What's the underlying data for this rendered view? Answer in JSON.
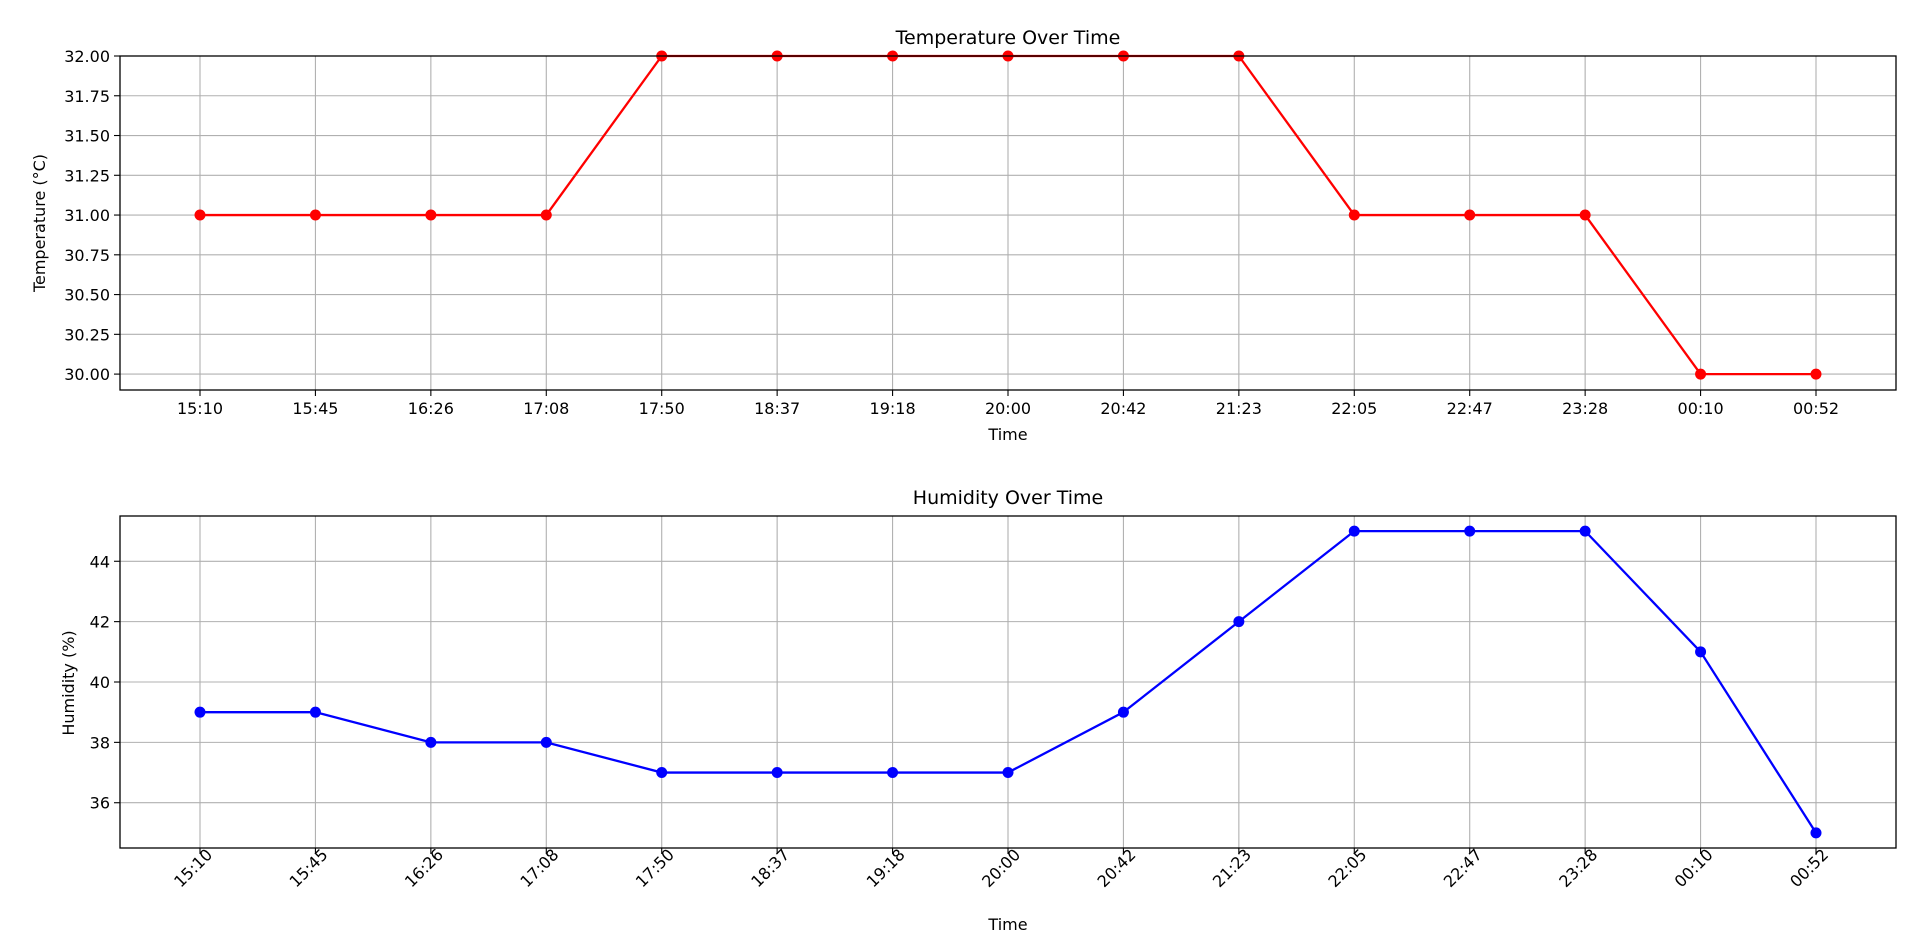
{
  "chart_data": [
    {
      "type": "line",
      "title": "Temperature Over Time",
      "xlabel": "Time",
      "ylabel": "Temperature (°C)",
      "categories": [
        "15:10",
        "15:45",
        "16:26",
        "17:08",
        "17:50",
        "18:37",
        "19:18",
        "20:00",
        "20:42",
        "21:23",
        "22:05",
        "22:47",
        "23:28",
        "00:10",
        "00:52"
      ],
      "series": [
        {
          "values": [
            31,
            31,
            31,
            31,
            32,
            32,
            32,
            32,
            32,
            32,
            31,
            31,
            31,
            30,
            30
          ],
          "color": "#ff0000",
          "marker": "circle"
        }
      ],
      "ylim": [
        29.9,
        32.0
      ],
      "yticks": [
        "30.00",
        "30.25",
        "30.50",
        "30.75",
        "31.00",
        "31.25",
        "31.50",
        "31.75",
        "32.00"
      ],
      "xtick_rotation": 0,
      "grid": true
    },
    {
      "type": "line",
      "title": "Humidity Over Time",
      "xlabel": "Time",
      "ylabel": "Humidity (%)",
      "categories": [
        "15:10",
        "15:45",
        "16:26",
        "17:08",
        "17:50",
        "18:37",
        "19:18",
        "20:00",
        "20:42",
        "21:23",
        "22:05",
        "22:47",
        "23:28",
        "00:10",
        "00:52"
      ],
      "series": [
        {
          "values": [
            39,
            39,
            38,
            38,
            37,
            37,
            37,
            37,
            39,
            42,
            45,
            45,
            45,
            41,
            35
          ],
          "color": "#0000ff",
          "marker": "circle"
        }
      ],
      "ylim": [
        34.5,
        45.5
      ],
      "yticks": [
        "36",
        "38",
        "40",
        "42",
        "44"
      ],
      "xtick_rotation": -45,
      "grid": true
    }
  ]
}
